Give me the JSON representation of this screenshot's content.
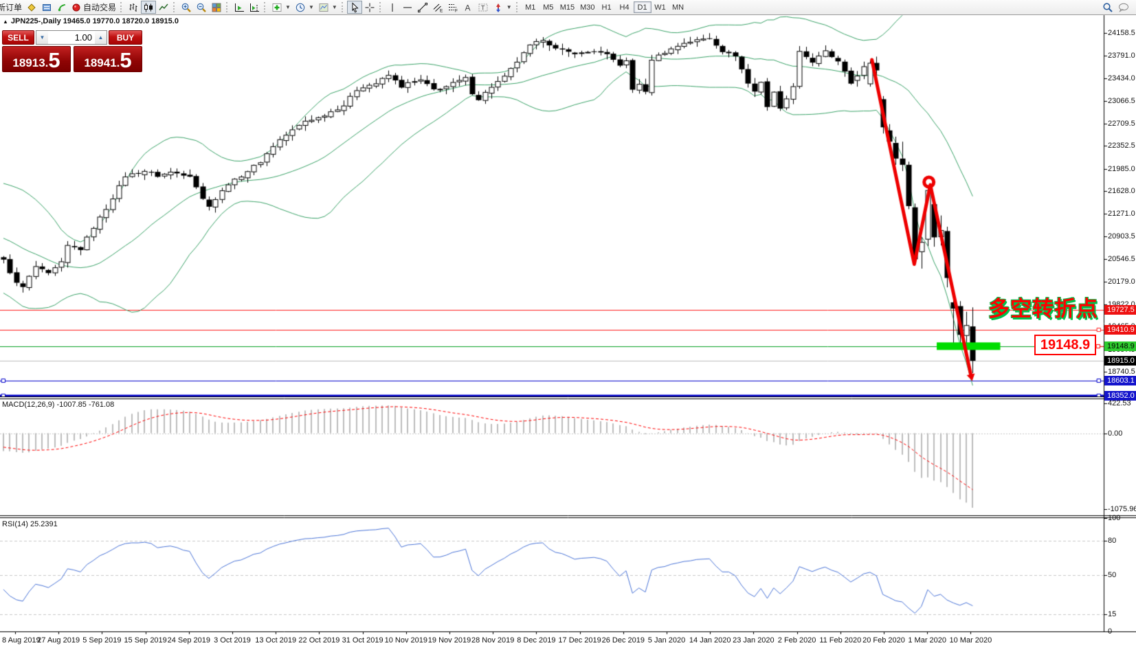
{
  "toolbar": {
    "new_order_label": "新订单",
    "auto_trading_label": "自动交易",
    "timeframes": [
      "M1",
      "M5",
      "M15",
      "M30",
      "H1",
      "H4",
      "D1",
      "W1",
      "MN"
    ],
    "active_timeframe": "D1"
  },
  "chart_header": {
    "collapse": "▲",
    "title": "JPN225-,Daily",
    "ohlc": "19465.0 19770.0 18720.0 18915.0"
  },
  "one_click": {
    "sell_label": "SELL",
    "buy_label": "BUY",
    "volume": "1.00",
    "spin_down": "▼",
    "spin_up": "▲",
    "sell_price_int": "18913.",
    "sell_price_frac": "5",
    "buy_price_int": "18941.",
    "buy_price_frac": "5"
  },
  "chart_data": {
    "type": "candlestick",
    "symbol": "JPN225-",
    "period": "Daily",
    "ohlc_current": {
      "open": 19465.0,
      "high": 19770.0,
      "low": 18720.0,
      "close": 18915.0
    },
    "bid": "18913.5",
    "ask": "18941.5",
    "price_axis_ticks": [
      "24158.5",
      "23791.0",
      "23434.0",
      "23066.5",
      "22709.5",
      "22352.5",
      "21985.0",
      "21628.0",
      "21271.0",
      "20903.5",
      "20546.5",
      "20179.0",
      "19822.0",
      "19465.0",
      "19097.5",
      "18740.5"
    ],
    "price_badges": [
      {
        "label": "19727.5",
        "bg": "#ee1111",
        "fg": "#ffffff"
      },
      {
        "label": "19410.9",
        "bg": "#ee1111",
        "fg": "#ffffff"
      },
      {
        "label": "19148.9",
        "bg": "#2ecc2e",
        "fg": "#000000"
      },
      {
        "label": "18915.0",
        "bg": "#000000",
        "fg": "#ffffff"
      },
      {
        "label": "18603.1",
        "bg": "#1414cc",
        "fg": "#ffffff"
      },
      {
        "label": "18352.0",
        "bg": "#1414cc",
        "fg": "#ffffff"
      }
    ],
    "hlines": [
      {
        "price": 19727.5,
        "color": "#ff2020",
        "width": 1,
        "handles": "none"
      },
      {
        "price": 19410.9,
        "color": "#ff2020",
        "width": 1,
        "handles": "right"
      },
      {
        "price": 19148.9,
        "color": "#00a020",
        "width": 1,
        "handles": "none"
      },
      {
        "price": 18915.0,
        "color": "#bdbdbd",
        "width": 1,
        "handles": "none"
      },
      {
        "price": 18603.1,
        "color": "#0000cc",
        "width": 1,
        "handles": "both"
      },
      {
        "price": 18352.0,
        "color": "#0000cc",
        "width": 3,
        "handles": "both"
      }
    ],
    "bollinger": {
      "period": 20,
      "deviation": 2,
      "color": "#3aa368"
    },
    "num_candles": 152,
    "close_anchors": [
      [
        0,
        20520
      ],
      [
        2,
        20150
      ],
      [
        3,
        20090
      ],
      [
        5,
        20420
      ],
      [
        7,
        20300
      ],
      [
        9,
        20480
      ],
      [
        10,
        20750
      ],
      [
        12,
        20700
      ],
      [
        14,
        21050
      ],
      [
        16,
        21350
      ],
      [
        19,
        21870
      ],
      [
        22,
        21950
      ],
      [
        24,
        21870
      ],
      [
        26,
        21930
      ],
      [
        29,
        21880
      ],
      [
        30,
        21700
      ],
      [
        31,
        21500
      ],
      [
        32,
        21400
      ],
      [
        33,
        21500
      ],
      [
        35,
        21750
      ],
      [
        36,
        21800
      ],
      [
        38,
        21950
      ],
      [
        40,
        22100
      ],
      [
        42,
        22350
      ],
      [
        43,
        22450
      ],
      [
        45,
        22600
      ],
      [
        47,
        22750
      ],
      [
        49,
        22800
      ],
      [
        51,
        22900
      ],
      [
        53,
        23000
      ],
      [
        55,
        23250
      ],
      [
        56,
        23300
      ],
      [
        58,
        23350
      ],
      [
        60,
        23480
      ],
      [
        62,
        23300
      ],
      [
        63,
        23350
      ],
      [
        65,
        23400
      ],
      [
        67,
        23250
      ],
      [
        69,
        23300
      ],
      [
        70,
        23350
      ],
      [
        72,
        23430
      ],
      [
        73,
        23200
      ],
      [
        74,
        23100
      ],
      [
        76,
        23300
      ],
      [
        78,
        23450
      ],
      [
        80,
        23700
      ],
      [
        82,
        23950
      ],
      [
        83,
        24000
      ],
      [
        84,
        24060
      ],
      [
        86,
        23900
      ],
      [
        88,
        23850
      ],
      [
        90,
        23830
      ],
      [
        92,
        23870
      ],
      [
        94,
        23800
      ],
      [
        96,
        23650
      ],
      [
        97,
        23700
      ],
      [
        98,
        23250
      ],
      [
        99,
        23350
      ],
      [
        100,
        23200
      ],
      [
        101,
        23740
      ],
      [
        103,
        23850
      ],
      [
        104,
        23900
      ],
      [
        106,
        24000
      ],
      [
        108,
        24040
      ],
      [
        110,
        24080
      ],
      [
        112,
        23870
      ],
      [
        114,
        23800
      ],
      [
        116,
        23350
      ],
      [
        117,
        23220
      ],
      [
        118,
        23380
      ],
      [
        119,
        22980
      ],
      [
        120,
        23200
      ],
      [
        121,
        22970
      ],
      [
        122,
        23090
      ],
      [
        123,
        23320
      ],
      [
        124,
        23870
      ],
      [
        126,
        23690
      ],
      [
        128,
        23860
      ],
      [
        130,
        23690
      ],
      [
        131,
        23520
      ],
      [
        132,
        23350
      ]
    ],
    "tail_start": 133,
    "tail_candles": [
      [
        23400,
        23550,
        23300,
        23470
      ],
      [
        23480,
        23700,
        23420,
        23620
      ],
      [
        23345,
        23720,
        23300,
        23675
      ],
      [
        23680,
        23780,
        23460,
        23560
      ],
      [
        23100,
        23150,
        22550,
        22650
      ],
      [
        22600,
        22700,
        22350,
        22420
      ],
      [
        22400,
        22500,
        22050,
        22150
      ],
      [
        22150,
        22420,
        21950,
        22050
      ],
      [
        22050,
        22100,
        21340,
        21390
      ],
      [
        21370,
        21430,
        20440,
        20540
      ],
      [
        20660,
        20890,
        20390,
        20810
      ],
      [
        20860,
        21700,
        20750,
        21640
      ],
      [
        21420,
        21470,
        20740,
        20890
      ],
      [
        20900,
        21240,
        20760,
        21000
      ],
      [
        20990,
        21060,
        20090,
        20240
      ],
      [
        19850,
        19960,
        19200,
        19750
      ],
      [
        19790,
        19870,
        19100,
        19330
      ],
      [
        19320,
        19700,
        19150,
        19480
      ],
      [
        19465,
        19770,
        18720,
        18915
      ]
    ],
    "indicators": {
      "macd": {
        "label": "MACD(12,26,9)",
        "value_text": "-1007.85 -761.08",
        "fast": 12,
        "slow": 26,
        "signal": 9,
        "axis_ticks": [
          "422.53",
          "0.00",
          "-1075.96"
        ],
        "ymax": 422.53,
        "ymin": -1075.96,
        "histogram_color": "#bdbdbd",
        "signal_color": "#ff0000"
      },
      "rsi": {
        "label": "RSI(14)",
        "value_text": "25.2391",
        "period": 14,
        "levels": [
          80,
          50,
          15
        ],
        "axis_ticks": [
          "100",
          "80",
          "50",
          "15",
          "0"
        ],
        "line_color": "#4a74d8"
      }
    },
    "annotations": {
      "trend_arrow": {
        "color": "#ee0000",
        "points_ip": [
          [
            135.3,
            23730
          ],
          [
            141.9,
            20460
          ],
          [
            144.4,
            21730
          ],
          [
            150.7,
            18700
          ]
        ]
      },
      "support_bar": {
        "color": "#00dd00",
        "price": 19148.9,
        "x_from_i": 145.4,
        "x_to_i": 155.3,
        "thickness": 11
      },
      "price_flag": {
        "text": "19148.9",
        "color": "#ff0000"
      },
      "cn_note": {
        "text": "多空转折点",
        "color": "#ff0000",
        "outline": "#00c24d"
      }
    },
    "date_axis": [
      "8 Aug 2019",
      "27 Aug 2019",
      "5 Sep 2019",
      "15 Sep 2019",
      "24 Sep 2019",
      "3 Oct 2019",
      "13 Oct 2019",
      "22 Oct 2019",
      "31 Oct 2019",
      "10 Nov 2019",
      "19 Nov 2019",
      "28 Nov 2019",
      "8 Dec 2019",
      "17 Dec 2019",
      "26 Dec 2019",
      "5 Jan 2020",
      "14 Jan 2020",
      "23 Jan 2020",
      "2 Feb 2020",
      "11 Feb 2020",
      "20 Feb 2020",
      "1 Mar 2020",
      "10 Mar 2020"
    ]
  }
}
